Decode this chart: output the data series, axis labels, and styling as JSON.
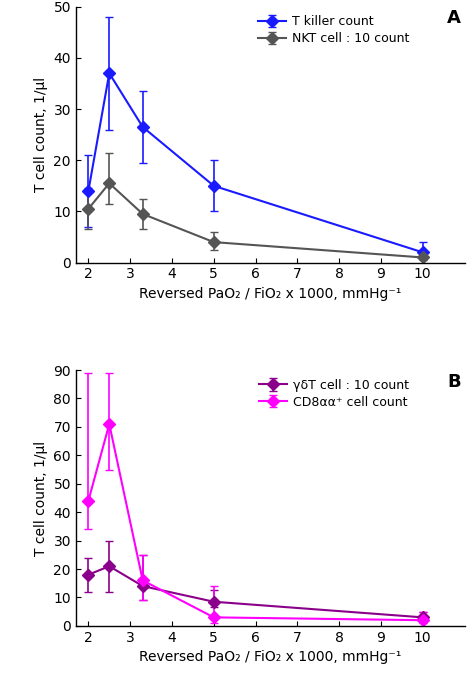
{
  "panel_A": {
    "label": "A",
    "x": [
      2,
      2.5,
      3.3,
      5,
      10
    ],
    "series": [
      {
        "name": "T killer count",
        "color": "#1a1aff",
        "y": [
          14,
          37,
          26.5,
          15,
          2
        ],
        "yerr_lo": [
          7,
          11,
          7,
          5,
          1
        ],
        "yerr_hi": [
          7,
          11,
          7,
          5,
          2
        ]
      },
      {
        "name": "NKT cell : 10 count",
        "color": "#555555",
        "y": [
          10.5,
          15.5,
          9.5,
          4,
          1
        ],
        "yerr_lo": [
          4,
          4,
          3,
          1.5,
          0.5
        ],
        "yerr_hi": [
          4,
          6,
          3,
          2,
          1
        ]
      }
    ],
    "ylabel": "T cell count, 1/µl",
    "xlabel": "Reversed PaO₂ / FiO₂ x 1000, mmHg⁻¹",
    "ylim": [
      0,
      50
    ],
    "yticks": [
      0,
      10,
      20,
      30,
      40,
      50
    ],
    "xticks": [
      2,
      3,
      4,
      5,
      6,
      7,
      8,
      9,
      10
    ]
  },
  "panel_B": {
    "label": "B",
    "x": [
      2,
      2.5,
      3.3,
      5,
      10
    ],
    "series": [
      {
        "name": "γδT cell : 10 count",
        "color": "#8b008b",
        "y": [
          18,
          21,
          14,
          8.5,
          3
        ],
        "yerr_lo": [
          6,
          9,
          5,
          2,
          1
        ],
        "yerr_hi": [
          6,
          9,
          11,
          4,
          2
        ]
      },
      {
        "name": "CD8αα⁺ cell count",
        "color": "#ff00ff",
        "y": [
          44,
          71,
          16,
          3,
          2
        ],
        "yerr_lo": [
          10,
          16,
          7,
          2,
          1
        ],
        "yerr_hi": [
          45,
          18,
          9,
          11,
          3
        ]
      }
    ],
    "ylabel": "T cell count, 1/µl",
    "xlabel": "Reversed PaO₂ / FiO₂ x 1000, mmHg⁻¹",
    "ylim": [
      0,
      90
    ],
    "yticks": [
      0,
      10,
      20,
      30,
      40,
      50,
      60,
      70,
      80,
      90
    ],
    "xticks": [
      2,
      3,
      4,
      5,
      6,
      7,
      8,
      9,
      10
    ]
  },
  "background_color": "#ffffff",
  "marker": "D",
  "markersize": 6,
  "linewidth": 1.5,
  "capsize": 3,
  "elinewidth": 1.2,
  "legend_fontsize": 9,
  "tick_labelsize": 10,
  "axis_labelsize": 10
}
